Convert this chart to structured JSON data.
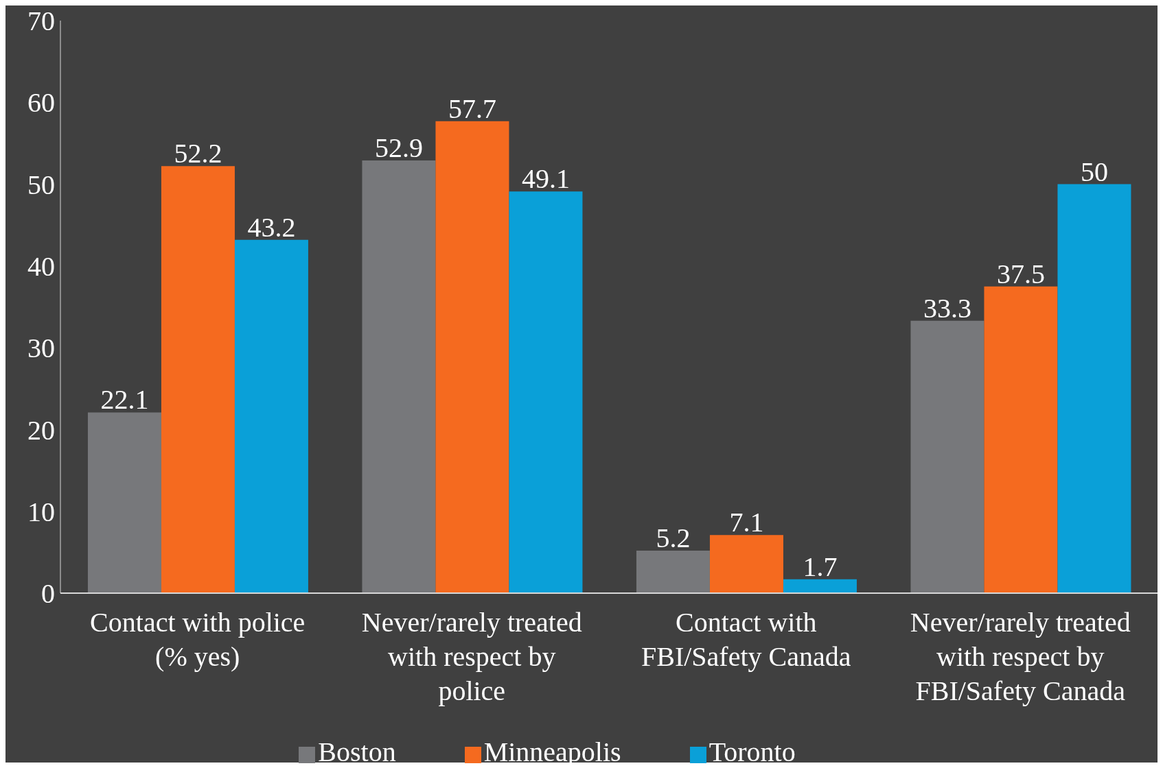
{
  "chart_data": {
    "type": "bar",
    "categories": [
      "Contact with police (% yes)",
      "Never/rarely treated with respect by police",
      "Contact with FBI/Safety Canada",
      "Never/rarely treated with respect by FBI/Safety Canada"
    ],
    "series": [
      {
        "name": "Boston",
        "color": "#77787b",
        "values": [
          22.1,
          52.9,
          5.2,
          33.3
        ]
      },
      {
        "name": "Minneapolis",
        "color": "#f56a1f",
        "values": [
          52.2,
          57.7,
          7.1,
          37.5
        ]
      },
      {
        "name": "Toronto",
        "color": "#0aa0d8",
        "values": [
          43.2,
          49.1,
          1.7,
          50
        ]
      }
    ],
    "ylim": [
      0,
      70
    ],
    "yticks": [
      0,
      10,
      20,
      30,
      40,
      50,
      60,
      70
    ],
    "data_labels": true,
    "grid": false,
    "legend": "bottom"
  }
}
